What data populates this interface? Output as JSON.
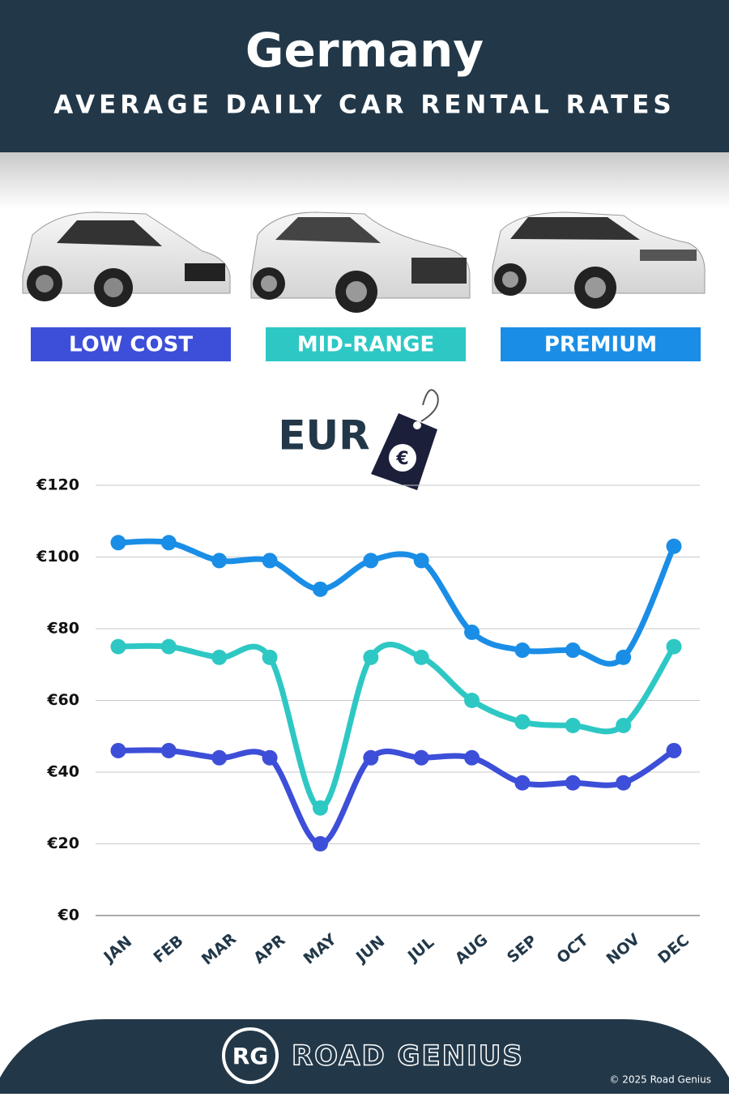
{
  "chart_data": {
    "type": "line",
    "title": "Germany",
    "subtitle": "AVERAGE DAILY CAR RENTAL RATES",
    "currency_label": "EUR",
    "categories": [
      "JAN",
      "FEB",
      "MAR",
      "APR",
      "MAY",
      "JUN",
      "JUL",
      "AUG",
      "SEP",
      "OCT",
      "NOV",
      "DEC"
    ],
    "series": [
      {
        "name": "LOW COST",
        "color": "#3d4fd8",
        "values": [
          46,
          46,
          44,
          44,
          20,
          44,
          44,
          44,
          37,
          37,
          37,
          46
        ]
      },
      {
        "name": "MID-RANGE",
        "color": "#2ec8c4",
        "values": [
          75,
          75,
          72,
          72,
          30,
          72,
          72,
          60,
          54,
          53,
          53,
          75
        ]
      },
      {
        "name": "PREMIUM",
        "color": "#1a8ee6",
        "values": [
          104,
          104,
          99,
          99,
          91,
          99,
          99,
          79,
          74,
          74,
          72,
          103
        ]
      }
    ],
    "ylim": [
      0,
      120
    ],
    "yticks": [
      {
        "value": 0,
        "label": "€0"
      },
      {
        "value": 20,
        "label": "€20"
      },
      {
        "value": 40,
        "label": "€40"
      },
      {
        "value": 60,
        "label": "€60"
      },
      {
        "value": 80,
        "label": "€80"
      },
      {
        "value": 100,
        "label": "€100"
      },
      {
        "value": 120,
        "label": "€120"
      }
    ],
    "grid": true
  },
  "footer": {
    "logo": "RG",
    "brand": "ROAD GENIUS",
    "copyright": "© 2025 Road Genius"
  }
}
